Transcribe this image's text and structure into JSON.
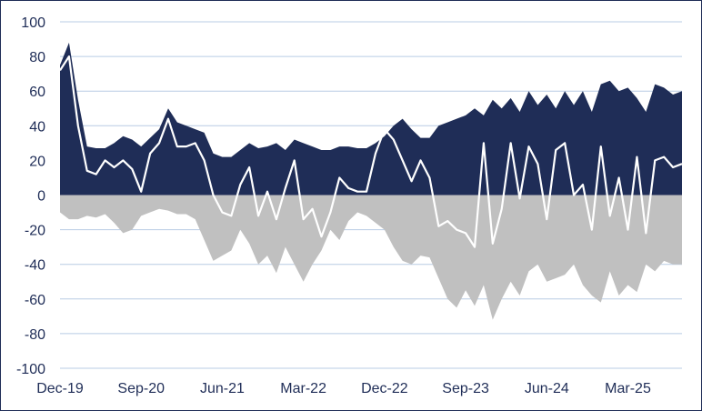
{
  "chart_data": {
    "type": "area",
    "x_tick_labels": [
      "Dec-19",
      "Sep-20",
      "Jun-21",
      "Mar-22",
      "Dec-22",
      "Sep-23",
      "Jun-24",
      "Mar-25"
    ],
    "y_tick_labels": [
      "100",
      "80",
      "60",
      "40",
      "20",
      "0",
      "-20",
      "-40",
      "-60",
      "-80",
      "-100"
    ],
    "ylim": [
      -100,
      100
    ],
    "grid": true,
    "legend": "none",
    "colors": {
      "positive": "#1f2d57",
      "negative": "#c0c0c0",
      "net": "#ffffff",
      "grid": "#b8cce4"
    },
    "x": [
      "2019-12",
      "2020-01",
      "2020-02",
      "2020-03",
      "2020-04",
      "2020-05",
      "2020-06",
      "2020-07",
      "2020-08",
      "2020-09",
      "2020-10",
      "2020-11",
      "2020-12",
      "2021-01",
      "2021-02",
      "2021-03",
      "2021-04",
      "2021-05",
      "2021-06",
      "2021-07",
      "2021-08",
      "2021-09",
      "2021-10",
      "2021-11",
      "2021-12",
      "2022-01",
      "2022-02",
      "2022-03",
      "2022-04",
      "2022-05",
      "2022-06",
      "2022-07",
      "2022-08",
      "2022-09",
      "2022-10",
      "2022-11",
      "2022-12",
      "2023-01",
      "2023-02",
      "2023-03",
      "2023-04",
      "2023-05",
      "2023-06",
      "2023-07",
      "2023-08",
      "2023-09",
      "2023-10",
      "2023-11",
      "2023-12",
      "2024-01",
      "2024-02",
      "2024-03",
      "2024-04",
      "2024-05",
      "2024-06",
      "2024-07",
      "2024-08",
      "2024-09",
      "2024-10",
      "2024-11",
      "2024-12",
      "2025-01",
      "2025-02",
      "2025-03",
      "2025-04",
      "2025-05",
      "2025-06",
      "2025-07",
      "2025-08",
      "2025-09"
    ],
    "series": [
      {
        "values": [
          75,
          88,
          55,
          28,
          27,
          27,
          30,
          34,
          32,
          28,
          33,
          38,
          50,
          42,
          40,
          38,
          36,
          24,
          22,
          22,
          26,
          30,
          27,
          28,
          30,
          26,
          32,
          30,
          28,
          26,
          26,
          28,
          28,
          27,
          27,
          30,
          34,
          40,
          44,
          38,
          33,
          33,
          40,
          42,
          44,
          46,
          50,
          46,
          55,
          50,
          56,
          48,
          60,
          52,
          58,
          50,
          60,
          52,
          60,
          48,
          64,
          66,
          60,
          62,
          56,
          48,
          64,
          62,
          58,
          60
        ]
      },
      {
        "values": [
          -10,
          -14,
          -14,
          -12,
          -13,
          -11,
          -16,
          -22,
          -20,
          -12,
          -10,
          -8,
          -9,
          -11,
          -11,
          -14,
          -26,
          -38,
          -35,
          -32,
          -20,
          -28,
          -40,
          -35,
          -45,
          -30,
          -40,
          -50,
          -40,
          -32,
          -20,
          -26,
          -15,
          -10,
          -12,
          -16,
          -20,
          -30,
          -38,
          -40,
          -35,
          -36,
          -48,
          -60,
          -65,
          -55,
          -64,
          -52,
          -72,
          -60,
          -50,
          -58,
          -44,
          -40,
          -50,
          -48,
          -46,
          -40,
          -52,
          -58,
          -62,
          -44,
          -58,
          -52,
          -56,
          -40,
          -44,
          -38,
          -40,
          -40
        ]
      },
      {
        "values": [
          72,
          80,
          40,
          14,
          12,
          20,
          16,
          20,
          15,
          2,
          24,
          30,
          44,
          28,
          28,
          30,
          20,
          0,
          -10,
          -12,
          6,
          16,
          -12,
          2,
          -14,
          4,
          20,
          -14,
          -8,
          -24,
          -10,
          10,
          4,
          2,
          2,
          24,
          38,
          32,
          20,
          8,
          20,
          10,
          -18,
          -15,
          -20,
          -22,
          -30,
          30,
          -28,
          -8,
          30,
          -2,
          28,
          18,
          -14,
          26,
          30,
          0,
          6,
          -20,
          28,
          -12,
          10,
          -20,
          22,
          -22,
          20,
          22,
          16,
          18
        ]
      }
    ]
  }
}
